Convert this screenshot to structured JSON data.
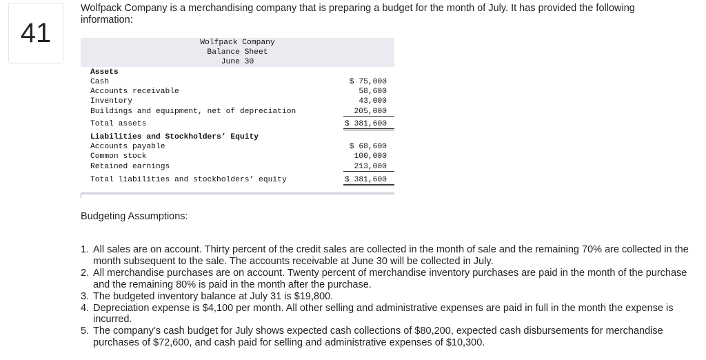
{
  "question_number": "41",
  "intro": "Wolfpack Company is a merchandising company that is preparing a budget for the month of July. It has provided the following information:",
  "balance_sheet": {
    "company": "Wolfpack Company",
    "statement": "Balance Sheet",
    "date": "June 30",
    "assets_heading": "Assets",
    "cash": {
      "label": "Cash",
      "amount": "$ 75,000"
    },
    "accounts_receivable": {
      "label": "Accounts receivable",
      "amount": "58,600"
    },
    "inventory": {
      "label": "Inventory",
      "amount": "43,000"
    },
    "buildings": {
      "label": "Buildings and equipment, net of depreciation",
      "amount": "205,000"
    },
    "total_assets": {
      "label": "Total assets",
      "amount": "$ 381,600"
    },
    "liabilities_heading": "Liabilities and Stockholders’ Equity",
    "accounts_payable": {
      "label": "Accounts payable",
      "amount": "$ 68,600"
    },
    "common_stock": {
      "label": "Common stock",
      "amount": "100,000"
    },
    "retained_earnings": {
      "label": "Retained earnings",
      "amount": "213,000"
    },
    "total_liabilities": {
      "label": "Total liabilities and stockholders’ equity",
      "amount": "$ 381,600"
    }
  },
  "assumptions_title": "Budgeting Assumptions:",
  "assumptions": [
    {
      "n": "1.",
      "text": "All sales are on account. Thirty percent of the credit sales are collected in the month of sale and the remaining 70% are collected in the month subsequent to the sale. The accounts receivable at June 30 will be collected in July."
    },
    {
      "n": "2.",
      "text": "All merchandise purchases are on account. Twenty percent of merchandise inventory purchases are paid in the month of the purchase and the remaining 80% is paid in the month after the purchase."
    },
    {
      "n": "3.",
      "text": "The budgeted inventory balance at July 31 is $19,800."
    },
    {
      "n": "4.",
      "text": "Depreciation expense is $4,100 per month. All other selling and administrative expenses are paid in full in the month the expense is incurred."
    },
    {
      "n": "5.",
      "text": "The company’s cash budget for July shows expected cash collections of $80,200, expected cash disbursements for merchandise purchases of $72,600, and cash paid for selling and administrative expenses of $10,300."
    }
  ]
}
